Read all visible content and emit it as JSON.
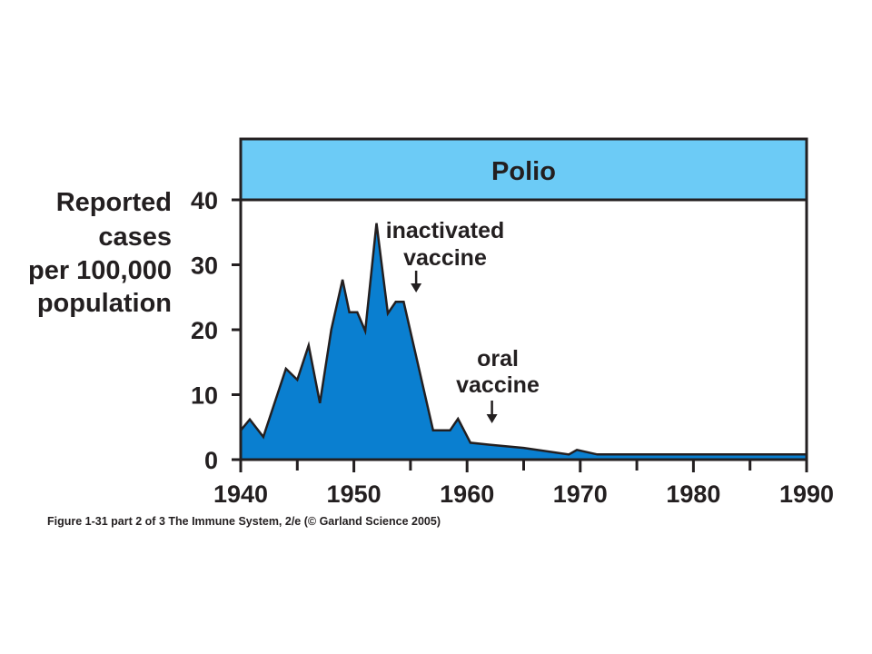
{
  "caption": "Figure 1-31 part 2 of 3  The Immune System, 2/e (© Garland Science 2005)",
  "chart_data": {
    "type": "area",
    "title": "Polio",
    "ylabel_lines": [
      "Reported",
      "cases",
      "per 100,000",
      "population"
    ],
    "xlabel": "",
    "xlim": [
      1940,
      1990
    ],
    "ylim": [
      0,
      40
    ],
    "x_ticks": [
      1940,
      1950,
      1960,
      1970,
      1980,
      1990
    ],
    "x_tick_labels": [
      "1940",
      "1950",
      "1960",
      "1970",
      "1980",
      "1990"
    ],
    "y_ticks": [
      0,
      10,
      20,
      30,
      40
    ],
    "y_tick_labels": [
      "0",
      "10",
      "20",
      "30",
      "40"
    ],
    "colors": {
      "area": "#0a7fd0",
      "outline": "#231f20",
      "title_band": "#6ccbf6"
    },
    "x": [
      1940,
      1940.8,
      1942,
      1944,
      1945,
      1946,
      1947,
      1948,
      1949,
      1949.6,
      1950.3,
      1951,
      1952,
      1953,
      1953.7,
      1954.4,
      1957,
      1958.5,
      1959.2,
      1960.3,
      1962,
      1965,
      1969,
      1969.7,
      1971.5,
      1975,
      1980,
      1985,
      1990
    ],
    "values": [
      4.5,
      6.2,
      3.5,
      14,
      12.3,
      17.6,
      8.7,
      20,
      27.7,
      22.7,
      22.7,
      19.8,
      36.4,
      22.5,
      24.3,
      24.3,
      4.5,
      4.5,
      6.3,
      2.6,
      2.3,
      1.8,
      0.8,
      1.5,
      0.8,
      0.8,
      0.8,
      0.8,
      0.8
    ],
    "annotations": [
      {
        "lines": [
          "inactivated",
          "vaccine"
        ],
        "x": 1955.5
      },
      {
        "lines": [
          "oral",
          "vaccine"
        ],
        "x": 1962.2
      }
    ]
  }
}
